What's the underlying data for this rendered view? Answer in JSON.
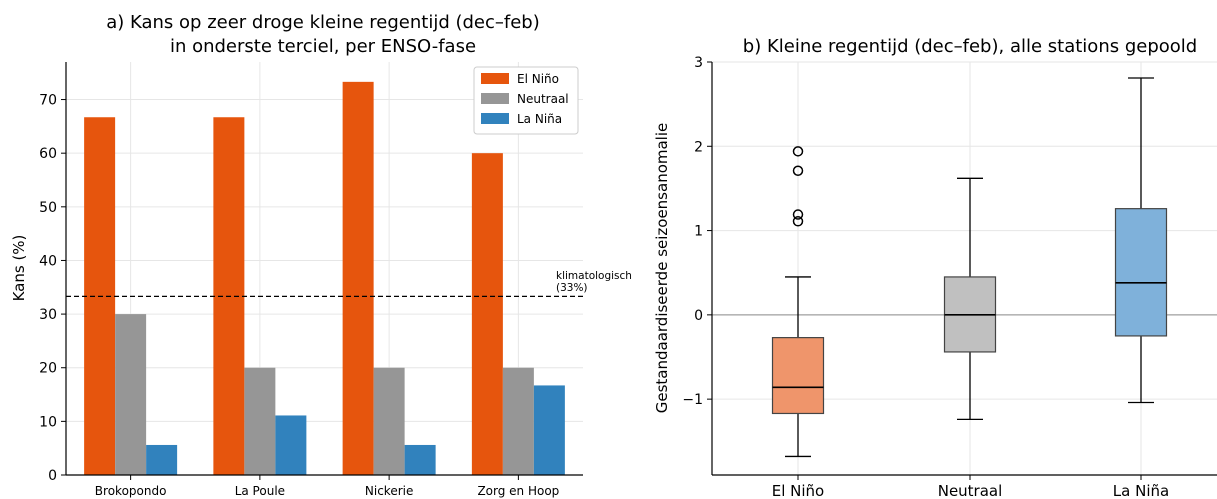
{
  "colors": {
    "el_nino": "#e6550d",
    "neutraal": "#969696",
    "la_nina": "#3182bd",
    "el_nino_box": "#ef956b",
    "neutraal_box": "#c0c0c0",
    "la_nina_box": "#7fb1da",
    "grid": "#e6e6e6",
    "zero_line": "#a0a0a0"
  },
  "chart_data": [
    {
      "type": "bar",
      "title_line1": "a) Kans op zeer droge kleine regentijd (dec–feb)",
      "title_line2": "in onderste terciel, per ENSO-fase",
      "xlabel": "",
      "ylabel": "Kans (%)",
      "ylim": [
        0,
        77
      ],
      "yticks": [
        0,
        10,
        20,
        30,
        40,
        50,
        60,
        70
      ],
      "grid": true,
      "legend_position": "top-right",
      "categories": [
        "Brokopondo",
        "La Poule",
        "Nickerie",
        "Zorg en Hoop"
      ],
      "series": [
        {
          "name": "El Niño",
          "values": [
            66.7,
            66.7,
            73.3,
            60.0
          ]
        },
        {
          "name": "Neutraal",
          "values": [
            30.0,
            20.0,
            20.0,
            20.0
          ]
        },
        {
          "name": "La Niña",
          "values": [
            5.6,
            11.1,
            5.6,
            16.7
          ]
        }
      ],
      "reference_line": {
        "value": 33.3,
        "label_line1": "klimatologisch",
        "label_line2": "(33%)"
      }
    },
    {
      "type": "box",
      "title": "b) Kleine regentijd (dec–feb), alle stations gepoold",
      "xlabel": "",
      "ylabel": "Gestandaardiseerde seizoensanomalie",
      "ylim": [
        -1.9,
        3.0
      ],
      "yticks": [
        -1,
        0,
        1,
        2,
        3
      ],
      "ytick_labels": [
        "−1",
        "0",
        "1",
        "2",
        "3"
      ],
      "grid": true,
      "reference_line": {
        "value": 0
      },
      "categories": [
        "El Niño",
        "Neutraal",
        "La Niña"
      ],
      "boxes": [
        {
          "whisker_low": -1.68,
          "q1": -1.17,
          "median": -0.86,
          "q3": -0.27,
          "whisker_high": 0.45,
          "outliers": [
            1.11,
            1.19,
            1.71,
            1.94
          ]
        },
        {
          "whisker_low": -1.24,
          "q1": -0.44,
          "median": 0.0,
          "q3": 0.45,
          "whisker_high": 1.62,
          "outliers": []
        },
        {
          "whisker_low": -1.04,
          "q1": -0.25,
          "median": 0.38,
          "q3": 1.26,
          "whisker_high": 2.81,
          "outliers": []
        }
      ]
    }
  ]
}
